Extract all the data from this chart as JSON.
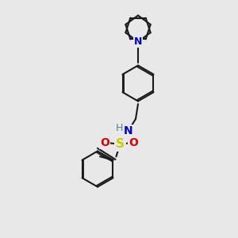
{
  "bg_color": "#e8e8e8",
  "bond_color": "#1a1a1a",
  "N_color": "#0000cc",
  "S_color": "#cccc00",
  "O_color": "#dd0000",
  "H_color": "#4a8a8a",
  "lw": 1.5,
  "dbo": 0.07,
  "figsize": [
    3.0,
    3.0
  ],
  "dpi": 100,
  "xlim": [
    0,
    10
  ],
  "ylim": [
    0,
    10
  ]
}
